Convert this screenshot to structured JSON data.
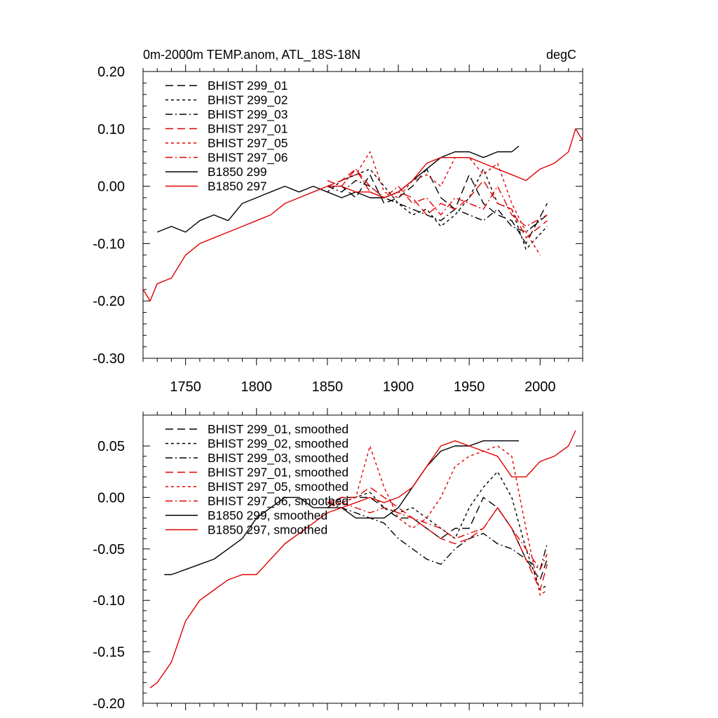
{
  "chart_data": [
    {
      "type": "line",
      "title": "0m-2000m TEMP.anom, ATL_18S-18N",
      "units_label": "degC",
      "xlim": [
        1720,
        2030
      ],
      "ylim": [
        -0.3,
        0.2
      ],
      "xticks": [
        1750,
        1800,
        1850,
        1900,
        1950,
        2000
      ],
      "xtick_labels": [
        "1750",
        "1800",
        "1850",
        "1900",
        "1950",
        "2000"
      ],
      "yticks": [
        0.2,
        0.1,
        0.0,
        -0.1,
        -0.2,
        -0.3
      ],
      "ytick_labels": [
        "0.20",
        "0.10",
        "0.00",
        "-0.10",
        "-0.20",
        "-0.30"
      ],
      "legend_position": "top-left",
      "series": [
        {
          "name": "BHIST 299_01",
          "color": "#000000",
          "dash": "long",
          "x": [
            1850,
            1860,
            1870,
            1880,
            1890,
            1900,
            1910,
            1920,
            1930,
            1940,
            1950,
            1960,
            1970,
            1980,
            1990,
            2005
          ],
          "y": [
            0.0,
            0.0,
            -0.02,
            0.02,
            -0.03,
            -0.02,
            0.0,
            0.03,
            -0.02,
            -0.04,
            0.02,
            -0.03,
            -0.05,
            -0.06,
            -0.1,
            -0.03
          ]
        },
        {
          "name": "BHIST 299_02",
          "color": "#000000",
          "dash": "short",
          "x": [
            1850,
            1860,
            1870,
            1880,
            1890,
            1900,
            1910,
            1920,
            1930,
            1940,
            1950,
            1960,
            1970,
            1980,
            1990,
            2005
          ],
          "y": [
            -0.01,
            0.01,
            0.02,
            0.03,
            0.0,
            -0.03,
            -0.05,
            -0.04,
            -0.07,
            -0.05,
            -0.02,
            0.03,
            -0.03,
            -0.04,
            -0.11,
            -0.07
          ]
        },
        {
          "name": "BHIST 299_03",
          "color": "#000000",
          "dash": "dashdot",
          "x": [
            1850,
            1860,
            1870,
            1880,
            1890,
            1900,
            1910,
            1920,
            1930,
            1940,
            1950,
            1960,
            1970,
            1980,
            1990,
            2005
          ],
          "y": [
            0.0,
            -0.01,
            0.01,
            0.0,
            -0.02,
            -0.03,
            -0.04,
            -0.05,
            -0.06,
            -0.04,
            -0.05,
            -0.06,
            -0.04,
            -0.07,
            -0.08,
            -0.05
          ]
        },
        {
          "name": "BHIST 297_01",
          "color": "#e00000",
          "dash": "long",
          "x": [
            1850,
            1860,
            1870,
            1880,
            1890,
            1900,
            1910,
            1920,
            1930,
            1940,
            1950,
            1960,
            1970,
            1980,
            1990,
            2005
          ],
          "y": [
            0.0,
            0.01,
            0.03,
            0.0,
            -0.02,
            -0.01,
            -0.02,
            -0.05,
            -0.03,
            -0.04,
            -0.02,
            0.01,
            -0.03,
            -0.04,
            -0.09,
            -0.06
          ]
        },
        {
          "name": "BHIST 297_05",
          "color": "#e00000",
          "dash": "short",
          "x": [
            1850,
            1860,
            1870,
            1880,
            1890,
            1900,
            1910,
            1920,
            1930,
            1940,
            1950,
            1960,
            1970,
            1980,
            1990,
            2000
          ],
          "y": [
            0.0,
            0.01,
            0.02,
            0.06,
            -0.01,
            -0.02,
            0.01,
            0.02,
            0.0,
            0.05,
            0.05,
            0.02,
            0.04,
            -0.03,
            -0.08,
            -0.12
          ]
        },
        {
          "name": "BHIST 297_06",
          "color": "#e00000",
          "dash": "dashdot",
          "x": [
            1850,
            1860,
            1870,
            1880,
            1890,
            1900,
            1910,
            1920,
            1930,
            1940,
            1950,
            1960,
            1970,
            1980,
            1990,
            2005
          ],
          "y": [
            0.01,
            0.0,
            0.03,
            -0.01,
            -0.02,
            0.0,
            -0.03,
            -0.02,
            -0.05,
            -0.02,
            -0.03,
            -0.04,
            0.0,
            -0.05,
            -0.07,
            -0.05
          ]
        },
        {
          "name": "B1850 299",
          "color": "#000000",
          "dash": "solid",
          "x": [
            1730,
            1740,
            1750,
            1760,
            1770,
            1780,
            1790,
            1800,
            1810,
            1820,
            1830,
            1840,
            1850,
            1860,
            1870,
            1880,
            1890,
            1900,
            1910,
            1920,
            1930,
            1940,
            1950,
            1960,
            1970,
            1980,
            1985
          ],
          "y": [
            -0.08,
            -0.07,
            -0.08,
            -0.06,
            -0.05,
            -0.06,
            -0.03,
            -0.02,
            -0.01,
            0.0,
            -0.01,
            0.0,
            -0.01,
            -0.02,
            -0.01,
            -0.02,
            -0.02,
            -0.01,
            0.01,
            0.03,
            0.05,
            0.06,
            0.06,
            0.05,
            0.06,
            0.06,
            0.07
          ]
        },
        {
          "name": "B1850 297",
          "color": "#e00000",
          "dash": "solid",
          "x": [
            1720,
            1725,
            1730,
            1740,
            1750,
            1760,
            1770,
            1780,
            1790,
            1800,
            1810,
            1820,
            1830,
            1840,
            1850,
            1860,
            1870,
            1880,
            1890,
            1900,
            1910,
            1920,
            1930,
            1940,
            1950,
            1960,
            1970,
            1980,
            1990,
            2000,
            2010,
            2020,
            2025,
            2030
          ],
          "y": [
            -0.18,
            -0.2,
            -0.17,
            -0.16,
            -0.12,
            -0.1,
            -0.09,
            -0.08,
            -0.07,
            -0.06,
            -0.05,
            -0.03,
            -0.02,
            -0.01,
            0.0,
            0.0,
            -0.01,
            -0.01,
            -0.02,
            -0.01,
            0.01,
            0.04,
            0.05,
            0.05,
            0.05,
            0.04,
            0.03,
            0.02,
            0.01,
            0.03,
            0.04,
            0.06,
            0.1,
            0.08
          ]
        }
      ]
    },
    {
      "type": "line",
      "xlim": [
        1720,
        2030
      ],
      "ylim": [
        -0.2,
        0.08
      ],
      "xticks": [
        1750,
        1800,
        1850,
        1900,
        1950,
        2000
      ],
      "yticks": [
        0.05,
        0.0,
        -0.05,
        -0.1,
        -0.15,
        -0.2
      ],
      "ytick_labels": [
        "0.05",
        "0.00",
        "-0.05",
        "-0.10",
        "-0.15",
        "-0.20"
      ],
      "legend_position": "top-left",
      "series": [
        {
          "name": "BHIST 299_01, smoothed",
          "color": "#000000",
          "dash": "long",
          "x": [
            1850,
            1860,
            1870,
            1880,
            1890,
            1900,
            1910,
            1920,
            1930,
            1940,
            1950,
            1960,
            1970,
            1980,
            1990,
            2000,
            2005
          ],
          "y": [
            -0.01,
            0.0,
            0.0,
            0.0,
            -0.01,
            -0.02,
            -0.02,
            -0.03,
            -0.04,
            -0.03,
            -0.03,
            0.0,
            -0.01,
            -0.03,
            -0.06,
            -0.08,
            -0.06
          ]
        },
        {
          "name": "BHIST 299_02, smoothed",
          "color": "#000000",
          "dash": "short",
          "x": [
            1850,
            1860,
            1870,
            1880,
            1890,
            1900,
            1910,
            1920,
            1930,
            1940,
            1950,
            1960,
            1970,
            1980,
            1990,
            2000,
            2005
          ],
          "y": [
            -0.01,
            -0.005,
            0.0,
            0.005,
            -0.01,
            -0.015,
            -0.01,
            -0.02,
            -0.03,
            -0.04,
            -0.01,
            0.01,
            0.025,
            0.0,
            -0.05,
            -0.09,
            -0.085
          ]
        },
        {
          "name": "BHIST 299_03, smoothed",
          "color": "#000000",
          "dash": "dashdot",
          "x": [
            1850,
            1860,
            1870,
            1880,
            1890,
            1900,
            1910,
            1920,
            1930,
            1940,
            1950,
            1960,
            1970,
            1980,
            1990,
            2000,
            2005
          ],
          "y": [
            -0.005,
            -0.01,
            -0.015,
            -0.02,
            -0.025,
            -0.04,
            -0.05,
            -0.06,
            -0.065,
            -0.05,
            -0.04,
            -0.035,
            -0.045,
            -0.05,
            -0.06,
            -0.07,
            -0.045
          ]
        },
        {
          "name": "BHIST 297_01, smoothed",
          "color": "#e00000",
          "dash": "long",
          "x": [
            1850,
            1860,
            1870,
            1880,
            1890,
            1900,
            1910,
            1920,
            1930,
            1940,
            1950,
            1960,
            1970,
            1980,
            1990,
            2000,
            2005
          ],
          "y": [
            -0.005,
            0.0,
            0.0,
            0.01,
            0.0,
            -0.01,
            -0.02,
            -0.03,
            -0.04,
            -0.045,
            -0.04,
            -0.03,
            -0.01,
            -0.03,
            -0.06,
            -0.09,
            -0.065
          ]
        },
        {
          "name": "BHIST 297_05, smoothed",
          "color": "#e00000",
          "dash": "short",
          "x": [
            1850,
            1860,
            1870,
            1880,
            1890,
            1900,
            1910,
            1920,
            1930,
            1940,
            1950,
            1960,
            1970,
            1980,
            1990,
            2000,
            2005
          ],
          "y": [
            -0.01,
            -0.005,
            0.0,
            0.05,
            0.01,
            -0.02,
            -0.03,
            -0.02,
            0.0,
            0.03,
            0.04,
            0.045,
            0.05,
            0.04,
            -0.03,
            -0.095,
            -0.09
          ]
        },
        {
          "name": "BHIST 297_06, smoothed",
          "color": "#e00000",
          "dash": "dashdot",
          "x": [
            1850,
            1860,
            1870,
            1880,
            1890,
            1900,
            1910,
            1920,
            1930,
            1940,
            1950,
            1960,
            1970,
            1980,
            1990,
            2000,
            2005
          ],
          "y": [
            -0.005,
            -0.005,
            -0.01,
            -0.015,
            -0.01,
            -0.015,
            -0.02,
            -0.025,
            -0.03,
            -0.04,
            -0.035,
            -0.03,
            -0.01,
            -0.03,
            -0.05,
            -0.07,
            -0.055
          ]
        },
        {
          "name": "B1850 299, smoothed",
          "color": "#000000",
          "dash": "solid",
          "x": [
            1735,
            1740,
            1750,
            1760,
            1770,
            1780,
            1790,
            1800,
            1810,
            1820,
            1830,
            1840,
            1850,
            1860,
            1870,
            1880,
            1890,
            1900,
            1910,
            1920,
            1930,
            1940,
            1950,
            1960,
            1970,
            1980,
            1985
          ],
          "y": [
            -0.075,
            -0.075,
            -0.07,
            -0.065,
            -0.06,
            -0.05,
            -0.04,
            -0.02,
            -0.01,
            0.0,
            0.0,
            -0.01,
            -0.01,
            -0.01,
            -0.02,
            -0.02,
            -0.02,
            -0.01,
            0.01,
            0.03,
            0.045,
            0.05,
            0.05,
            0.055,
            0.055,
            0.055,
            0.055
          ]
        },
        {
          "name": "B1850 297, smoothed",
          "color": "#e00000",
          "dash": "solid",
          "x": [
            1725,
            1730,
            1740,
            1750,
            1760,
            1770,
            1780,
            1790,
            1800,
            1810,
            1820,
            1830,
            1840,
            1850,
            1860,
            1870,
            1880,
            1890,
            1900,
            1910,
            1920,
            1930,
            1940,
            1950,
            1960,
            1970,
            1980,
            1990,
            2000,
            2010,
            2020,
            2025
          ],
          "y": [
            -0.185,
            -0.18,
            -0.16,
            -0.12,
            -0.1,
            -0.09,
            -0.08,
            -0.075,
            -0.075,
            -0.06,
            -0.045,
            -0.035,
            -0.025,
            -0.015,
            -0.01,
            -0.005,
            0.0,
            -0.005,
            0.0,
            0.01,
            0.03,
            0.05,
            0.055,
            0.05,
            0.045,
            0.04,
            0.02,
            0.02,
            0.035,
            0.04,
            0.05,
            0.065
          ]
        }
      ]
    }
  ]
}
